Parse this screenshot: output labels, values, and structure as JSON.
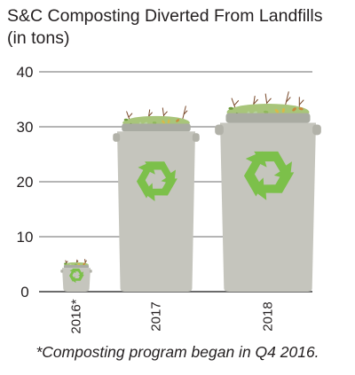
{
  "chart_data": {
    "type": "bar",
    "title": "S&C Composting  Diverted From Landfills",
    "subtitle": "(in tons)",
    "categories": [
      "2016*",
      "2017",
      "2018"
    ],
    "values": [
      5,
      31,
      33
    ],
    "ylim": [
      0,
      40
    ],
    "yticks": [
      0,
      10,
      20,
      30,
      40
    ],
    "grid": true,
    "footnote": "*Composting program began in Q4 2016.",
    "colors": {
      "bin": "#c5c5bd",
      "bin_rim": "#b2b2a9",
      "lid": "#a9aba2",
      "recycle": "#7cc04a",
      "greens": "#a8c57a",
      "twigs": "#7a4a2b",
      "grid": "#6b6b6b"
    },
    "mark_style": "recycling bins filled with compost",
    "icon": "recycle-icon"
  }
}
